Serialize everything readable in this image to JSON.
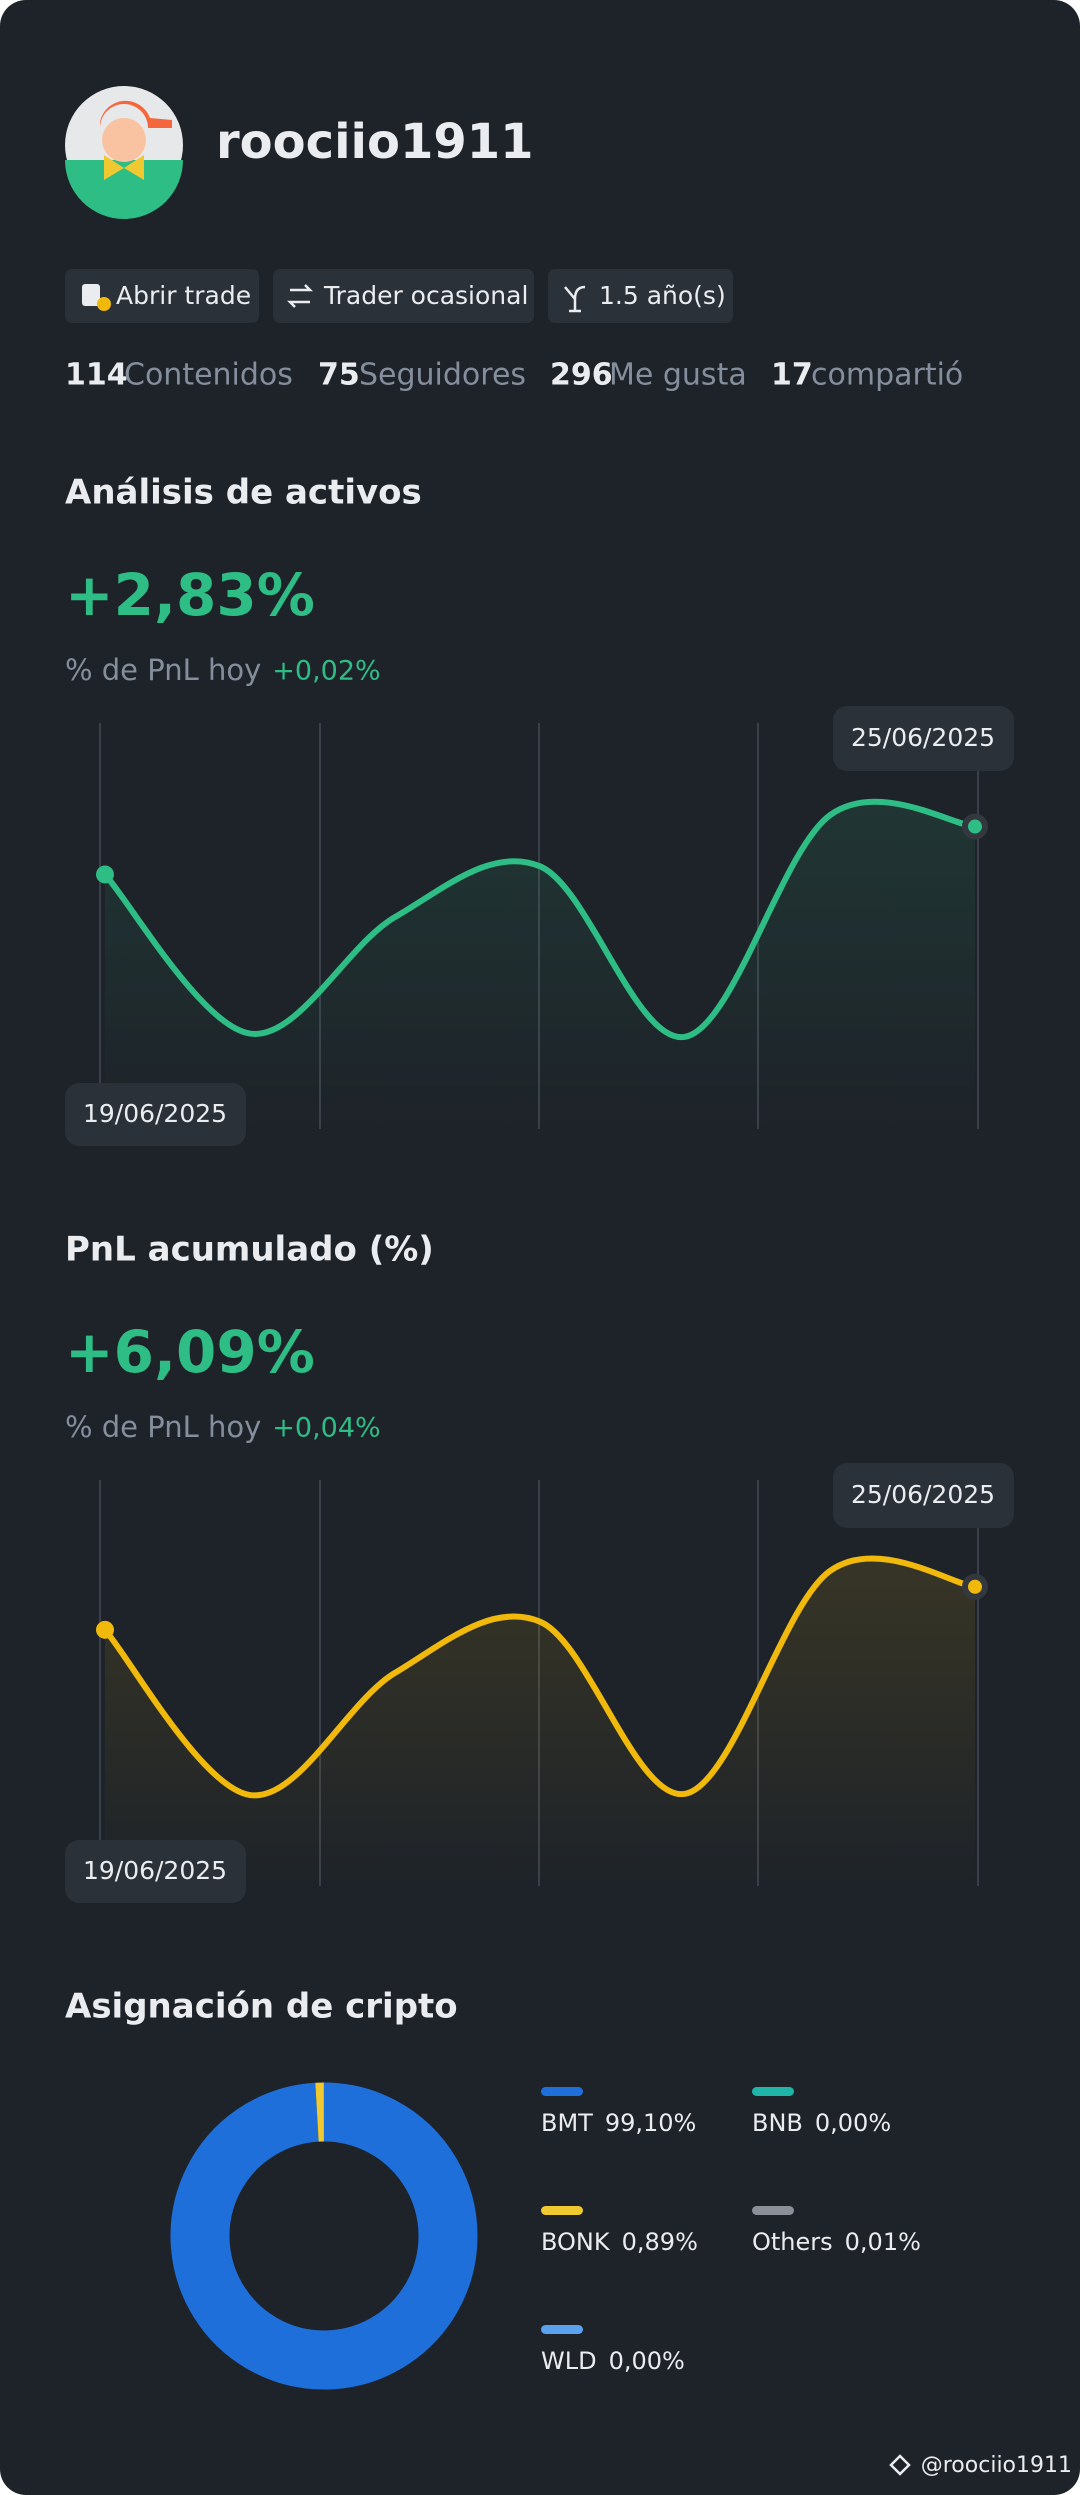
{
  "profile": {
    "username": "roociio1911",
    "tags": [
      "Abrir trade",
      "Trader ocasional",
      "1.5 año(s)"
    ],
    "stats": [
      {
        "value": 114,
        "label": "Contenidos"
      },
      {
        "value": 75,
        "label": "Seguidores"
      },
      {
        "value": 296,
        "label": "Me gusta"
      },
      {
        "value": 17,
        "label": "compartió"
      }
    ]
  },
  "asset_analysis": {
    "title": "Análisis de activos",
    "value": "+2,83%",
    "subtitle": "% de PnL hoy",
    "change": "+0,02%",
    "chart": {
      "type": "line",
      "start_label": "19/06/2025",
      "end_label": "25/06/2025",
      "color": "#2ebd85",
      "values": [
        62.7,
        23.5,
        52.2,
        64.7,
        22.7,
        77.3,
        74.5
      ],
      "ylim": [
        0,
        100
      ]
    }
  },
  "cumulative_pnl": {
    "title": "PnL acumulado (%)",
    "value": "+6,09%",
    "subtitle": "% de PnL hoy",
    "change": "+0,04%",
    "chart": {
      "type": "line",
      "start_label": "19/06/2025",
      "end_label": "25/06/2025",
      "color": "#f0b90b",
      "values": [
        63.1,
        22.4,
        52.5,
        65.1,
        22.7,
        77.6,
        73.7
      ],
      "ylim": [
        0,
        100
      ]
    }
  },
  "allocation": {
    "title": "Asignación de cripto",
    "chart": {
      "type": "donut",
      "categories": [
        "BMT",
        "BONK",
        "WLD",
        "BNB",
        "Others"
      ],
      "values": [
        99.1,
        0.89,
        0,
        0,
        0.01
      ],
      "value_labels": [
        "99,10%",
        "0,89%",
        "0,00%",
        "0,00%",
        "0,01%"
      ],
      "colors": [
        "#1f6fdb",
        "#f0c930",
        "#5aa2f0",
        "#1fb5a9",
        "#8a8f98"
      ]
    }
  },
  "watermark": "@roociio1911"
}
